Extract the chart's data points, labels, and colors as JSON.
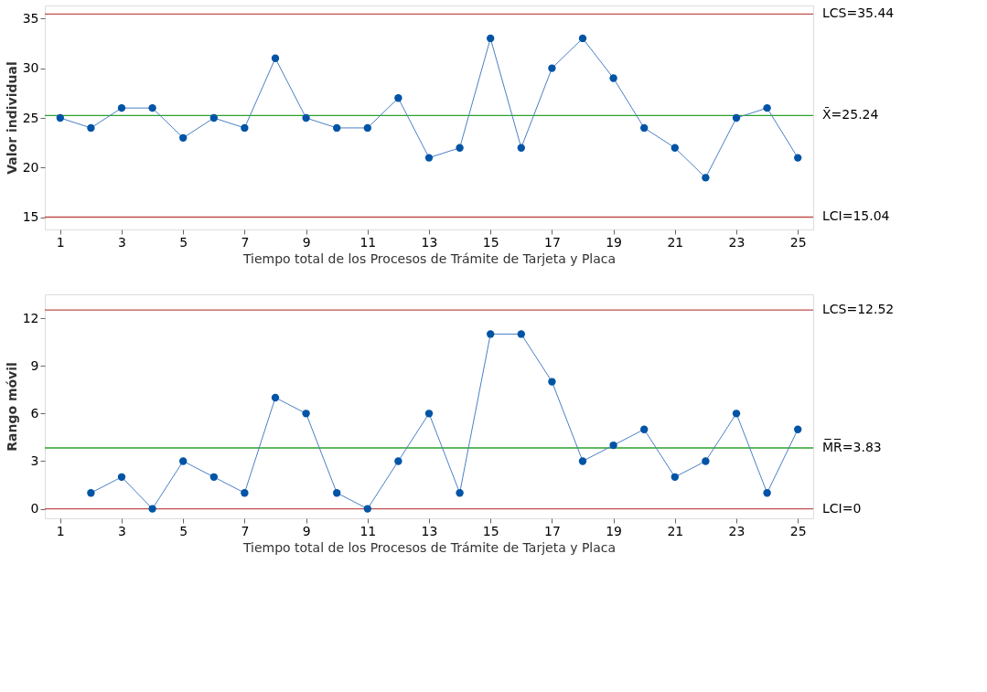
{
  "chart_data": [
    {
      "type": "line",
      "xlabel": "Tiempo total de los Procesos de Trámite de Tarjeta y Placa",
      "ylabel": "Valor individual",
      "x": [
        1,
        2,
        3,
        4,
        5,
        6,
        7,
        8,
        9,
        10,
        11,
        12,
        13,
        14,
        15,
        16,
        17,
        18,
        19,
        20,
        21,
        22,
        23,
        24,
        25
      ],
      "series": [
        {
          "color": "#0054a6",
          "values": [
            25,
            24,
            26,
            26,
            23,
            25,
            24,
            31,
            25,
            24,
            24,
            27,
            21,
            22,
            33,
            22,
            30,
            33,
            29,
            24,
            22,
            19,
            25,
            26,
            21
          ]
        }
      ],
      "xlim": [
        0.5,
        25.5
      ],
      "xticks": [
        1,
        3,
        5,
        7,
        9,
        11,
        13,
        15,
        17,
        19,
        21,
        23,
        25
      ],
      "ylim": [
        13.8,
        36.3
      ],
      "yticks": [
        15,
        20,
        25,
        30,
        35
      ],
      "ref_lines": [
        {
          "axis": "y",
          "value": 35.44,
          "label": "LCS=35.44",
          "color": "#c0504d"
        },
        {
          "axis": "y",
          "value": 25.24,
          "label": "X̄=25.24",
          "color": "#2ca02c"
        },
        {
          "axis": "y",
          "value": 15.04,
          "label": "LCI=15.04",
          "color": "#c0504d"
        }
      ],
      "marker": "circle",
      "grid": false
    },
    {
      "type": "line",
      "xlabel": "Tiempo total de los Procesos de Trámite de Tarjeta y Placa",
      "ylabel": "Rango móvil",
      "series": [
        {
          "color": "#0054a6",
          "x": [
            2,
            3,
            4,
            5,
            6,
            7,
            8,
            9,
            10,
            11,
            12,
            13,
            14,
            15,
            16,
            17,
            18,
            19,
            20,
            21,
            22,
            23,
            24,
            25
          ],
          "values": [
            1,
            2,
            0,
            3,
            2,
            1,
            7,
            6,
            1,
            0,
            3,
            6,
            1,
            11,
            11,
            8,
            3,
            4,
            5,
            2,
            3,
            6,
            1,
            5
          ]
        }
      ],
      "xlim": [
        0.5,
        25.5
      ],
      "xticks": [
        1,
        3,
        5,
        7,
        9,
        11,
        13,
        15,
        17,
        19,
        21,
        23,
        25
      ],
      "ylim": [
        -0.6,
        13.5
      ],
      "yticks": [
        0,
        3,
        6,
        9,
        12
      ],
      "ref_lines": [
        {
          "axis": "y",
          "value": 12.52,
          "label": "LCS=12.52",
          "color": "#c0504d"
        },
        {
          "axis": "y",
          "value": 3.83,
          "label": "M̅R̅=3.83",
          "color": "#2ca02c"
        },
        {
          "axis": "y",
          "value": 0,
          "label": "LCI=0",
          "color": "#c0504d"
        }
      ],
      "marker": "circle",
      "grid": false
    }
  ]
}
